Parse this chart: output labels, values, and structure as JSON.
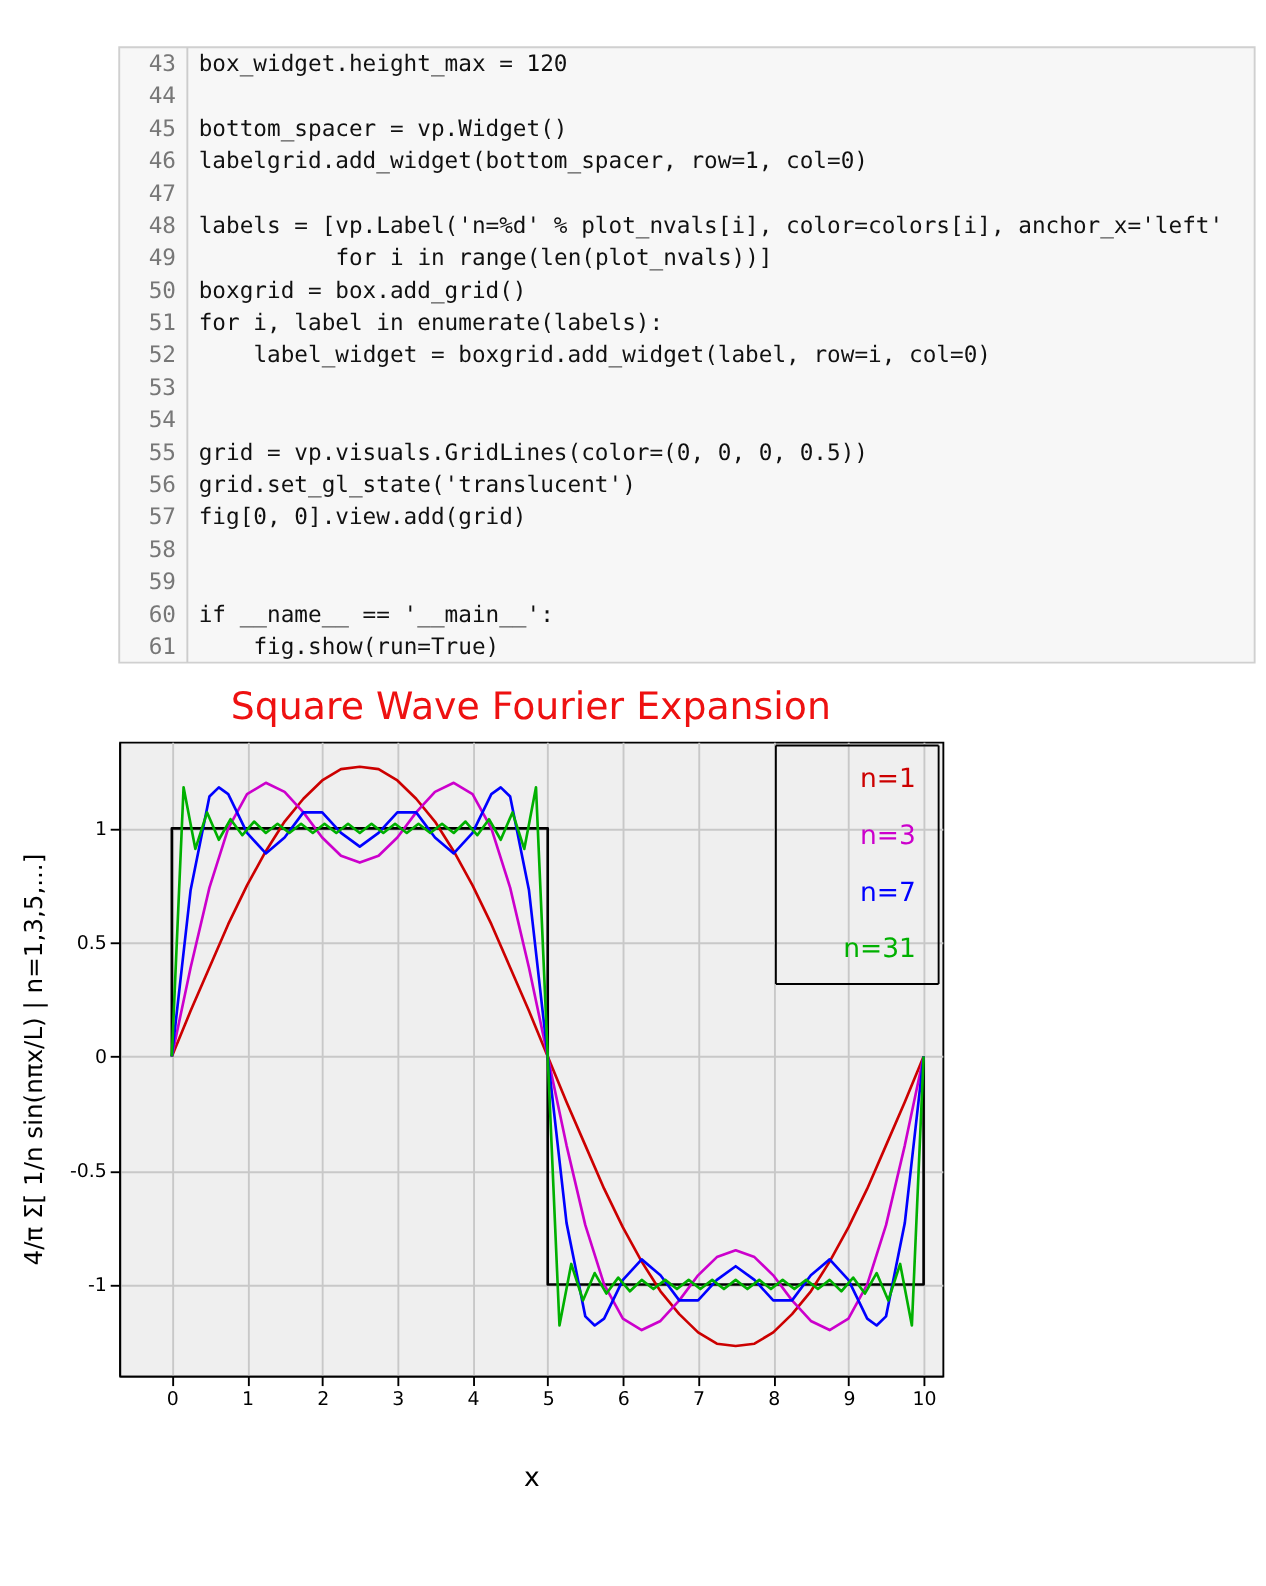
{
  "chart_data": {
    "type": "line",
    "title": "Square Wave Fourier Expansion",
    "xlabel": "x",
    "ylabel": "4/π Σ[ 1/n sin(nπx/L) | n=1,3,5,...]",
    "xlim": [
      -0.7,
      10.25
    ],
    "ylim": [
      -1.4,
      1.38
    ],
    "xticks": [
      0,
      1,
      2,
      3,
      4,
      5,
      6,
      7,
      8,
      9,
      10
    ],
    "yticks": [
      -1,
      -0.5,
      0,
      0.5,
      1
    ],
    "grid": true,
    "legend": "top right",
    "annotations": [
      "43 box_widget.height_max = 120",
      "44",
      "45 bottom_spacer = vp.Widget()",
      "46 labelgrid.add_widget(bottom_spacer, row=1, col=0)",
      "47",
      "48 labels = [vp.Label('n=%d' % plot_nvals[i], color=colors[i], anchor_x='left'",
      "49           for i in range(len(plot_nvals))]",
      "50 boxgrid = box.add_grid()",
      "51 for i, label in enumerate(labels):",
      "52     label_widget = boxgrid.add_widget(label, row=i, col=0)",
      "53",
      "54",
      "55 grid = vp.visuals.GridLines(color=(0, 0, 0, 0.5))",
      "56 grid.set_gl_state('translucent')",
      "57 fig[0, 0].view.add(grid)",
      "58",
      "59",
      "60 if __name__ == '__main__':",
      "61     fig.show(run=True)"
    ],
    "series": [
      {
        "color": "#000000",
        "x": [
          0,
          0,
          5,
          5,
          10,
          10
        ],
        "values": [
          0,
          1,
          1,
          -1,
          -1,
          0
        ]
      },
      {
        "name": "n=1",
        "color": "#cc0000",
        "x": [
          0,
          0.25,
          0.5,
          0.75,
          1,
          1.25,
          1.5,
          1.75,
          2,
          2.25,
          2.5,
          2.75,
          3,
          3.25,
          3.5,
          3.75,
          4,
          4.25,
          4.5,
          4.75,
          5,
          5.25,
          5.5,
          5.75,
          6,
          6.25,
          6.5,
          6.75,
          7,
          7.25,
          7.5,
          7.75,
          8,
          8.25,
          8.5,
          8.75,
          9,
          9.25,
          9.5,
          9.75,
          10
        ],
        "values": [
          0,
          0.2,
          0.39,
          0.58,
          0.75,
          0.9,
          1.03,
          1.13,
          1.21,
          1.26,
          1.27,
          1.26,
          1.21,
          1.13,
          1.03,
          0.9,
          0.75,
          0.58,
          0.39,
          0.2,
          0,
          -0.2,
          -0.39,
          -0.58,
          -0.75,
          -0.9,
          -1.03,
          -1.13,
          -1.21,
          -1.26,
          -1.27,
          -1.26,
          -1.21,
          -1.13,
          -1.03,
          -0.9,
          -0.75,
          -0.58,
          -0.39,
          -0.2,
          0
        ]
      },
      {
        "name": "n=3",
        "color": "#cc00cc",
        "x": [
          0,
          0.25,
          0.5,
          0.75,
          1,
          1.25,
          1.5,
          1.75,
          2,
          2.25,
          2.5,
          2.75,
          3,
          3.25,
          3.5,
          3.75,
          4,
          4.25,
          4.5,
          4.75,
          5,
          5.25,
          5.5,
          5.75,
          6,
          6.25,
          6.5,
          6.75,
          7,
          7.25,
          7.5,
          7.75,
          8,
          8.25,
          8.5,
          8.75,
          9,
          9.25,
          9.5,
          9.75,
          10
        ],
        "values": [
          0,
          0.39,
          0.74,
          1.0,
          1.15,
          1.2,
          1.16,
          1.07,
          0.96,
          0.88,
          0.85,
          0.88,
          0.96,
          1.07,
          1.16,
          1.2,
          1.15,
          1.0,
          0.74,
          0.39,
          0,
          -0.39,
          -0.74,
          -1.0,
          -1.15,
          -1.2,
          -1.16,
          -1.07,
          -0.96,
          -0.88,
          -0.85,
          -0.88,
          -0.96,
          -1.07,
          -1.16,
          -1.2,
          -1.15,
          -1.0,
          -0.74,
          -0.39,
          0
        ]
      },
      {
        "name": "n=7",
        "color": "#0000ff",
        "x": [
          0,
          0.25,
          0.5,
          0.625,
          0.75,
          1,
          1.25,
          1.5,
          1.75,
          2,
          2.25,
          2.5,
          2.75,
          3,
          3.25,
          3.5,
          3.75,
          4,
          4.25,
          4.375,
          4.5,
          4.75,
          5,
          5.25,
          5.5,
          5.625,
          5.75,
          6,
          6.25,
          6.5,
          6.75,
          7,
          7.25,
          7.5,
          7.75,
          8,
          8.25,
          8.5,
          8.75,
          9,
          9.25,
          9.375,
          9.5,
          9.75,
          10
        ],
        "values": [
          0,
          0.73,
          1.14,
          1.18,
          1.15,
          0.98,
          0.89,
          0.96,
          1.07,
          1.07,
          0.98,
          0.92,
          0.98,
          1.07,
          1.07,
          0.96,
          0.89,
          0.98,
          1.15,
          1.18,
          1.14,
          0.73,
          0,
          -0.73,
          -1.14,
          -1.18,
          -1.15,
          -0.98,
          -0.89,
          -0.96,
          -1.07,
          -1.07,
          -0.98,
          -0.92,
          -0.98,
          -1.07,
          -1.07,
          -0.96,
          -0.89,
          -0.98,
          -1.15,
          -1.18,
          -1.14,
          -0.73,
          0
        ]
      },
      {
        "name": "n=31",
        "color": "#00b000",
        "x": [
          0,
          0.156,
          0.313,
          0.469,
          0.625,
          0.781,
          0.938,
          1.094,
          1.25,
          1.406,
          1.563,
          1.719,
          1.875,
          2.031,
          2.188,
          2.344,
          2.5,
          2.656,
          2.813,
          2.969,
          3.125,
          3.281,
          3.438,
          3.594,
          3.75,
          3.906,
          4.063,
          4.219,
          4.375,
          4.531,
          4.688,
          4.844,
          5,
          5.156,
          5.313,
          5.469,
          5.625,
          5.781,
          5.938,
          6.094,
          6.25,
          6.406,
          6.563,
          6.719,
          6.875,
          7.031,
          7.188,
          7.344,
          7.5,
          7.656,
          7.813,
          7.969,
          8.125,
          8.281,
          8.438,
          8.594,
          8.75,
          8.906,
          9.063,
          9.219,
          9.375,
          9.531,
          9.688,
          9.844,
          10
        ],
        "values": [
          0,
          1.18,
          0.91,
          1.07,
          0.95,
          1.04,
          0.97,
          1.03,
          0.98,
          1.02,
          0.98,
          1.02,
          0.98,
          1.02,
          0.98,
          1.02,
          0.98,
          1.02,
          0.98,
          1.02,
          0.98,
          1.02,
          0.98,
          1.02,
          0.98,
          1.03,
          0.97,
          1.04,
          0.95,
          1.07,
          0.91,
          1.18,
          0,
          -1.18,
          -0.91,
          -1.07,
          -0.95,
          -1.04,
          -0.97,
          -1.03,
          -0.98,
          -1.02,
          -0.98,
          -1.02,
          -0.98,
          -1.02,
          -0.98,
          -1.02,
          -0.98,
          -1.02,
          -0.98,
          -1.02,
          -0.98,
          -1.02,
          -0.98,
          -1.02,
          -0.98,
          -1.03,
          -0.97,
          -1.04,
          -0.95,
          -1.07,
          -0.91,
          -1.18,
          0
        ]
      }
    ]
  }
}
